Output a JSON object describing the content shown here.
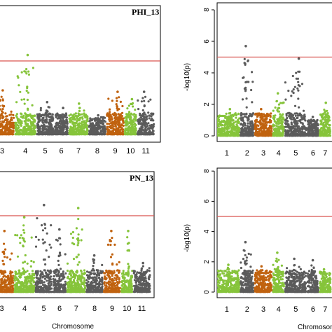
{
  "colors": {
    "dark": "#5b5b5b",
    "orange": "#c0620f",
    "green": "#86c43b",
    "threshold": "#d9534f",
    "frame": "#000000"
  },
  "chart_data": [
    {
      "type": "scatter",
      "title": "PHI_13",
      "xlabel": "",
      "ylabel": "",
      "ylim": [
        0,
        8.4
      ],
      "threshold": 5,
      "show_yaxis": false,
      "chromosomes": [
        "3",
        "4",
        "5",
        "6",
        "7",
        "8",
        "9",
        "10",
        "11"
      ],
      "peaks": [
        {
          "chromosome": "3",
          "value": 3.0
        },
        {
          "chromosome": "4",
          "value": 5.4
        },
        {
          "chromosome": "5",
          "value": 2.2
        },
        {
          "chromosome": "6",
          "value": 1.8
        },
        {
          "chromosome": "7",
          "value": 2.1
        },
        {
          "chromosome": "8",
          "value": 1.3
        },
        {
          "chromosome": "9",
          "value": 2.9
        },
        {
          "chromosome": "10",
          "value": 2.4
        },
        {
          "chromosome": "11",
          "value": 2.9
        }
      ]
    },
    {
      "type": "scatter",
      "title": "",
      "xlabel": "",
      "ylabel": "-log10(p)",
      "ylim": [
        0,
        8.4
      ],
      "yticks": [
        "0",
        "2",
        "4",
        "6",
        "8"
      ],
      "threshold": 5,
      "show_yaxis": true,
      "chromosomes": [
        "1",
        "2",
        "3",
        "4",
        "5",
        "6",
        "7"
      ],
      "peaks": [
        {
          "chromosome": "1",
          "value": 1.7
        },
        {
          "chromosome": "2",
          "value": 5.7
        },
        {
          "chromosome": "3",
          "value": 1.7
        },
        {
          "chromosome": "4",
          "value": 2.7
        },
        {
          "chromosome": "5",
          "value": 4.9
        },
        {
          "chromosome": "6",
          "value": 1.2
        },
        {
          "chromosome": "7",
          "value": 2.1
        }
      ]
    },
    {
      "type": "scatter",
      "title": "PN_13",
      "xlabel": "Chromosome",
      "ylabel": "",
      "ylim": [
        0,
        8.4
      ],
      "threshold": 5,
      "show_yaxis": false,
      "chromosomes": [
        "3",
        "4",
        "5",
        "6",
        "7",
        "8",
        "9",
        "10",
        "11"
      ],
      "peaks": [
        {
          "chromosome": "3",
          "value": 4.0
        },
        {
          "chromosome": "4",
          "value": 4.9
        },
        {
          "chromosome": "5",
          "value": 5.7
        },
        {
          "chromosome": "6",
          "value": 4.1
        },
        {
          "chromosome": "7",
          "value": 5.5
        },
        {
          "chromosome": "8",
          "value": 2.4
        },
        {
          "chromosome": "9",
          "value": 4.0
        },
        {
          "chromosome": "10",
          "value": 4.0
        },
        {
          "chromosome": "11",
          "value": 1.9
        }
      ]
    },
    {
      "type": "scatter",
      "title": "",
      "xlabel": "Chromosome",
      "ylabel": "-log10(p)",
      "ylim": [
        0,
        8.4
      ],
      "yticks": [
        "0",
        "2",
        "4",
        "6",
        "8"
      ],
      "threshold": 5,
      "show_yaxis": true,
      "chromosomes": [
        "1",
        "2",
        "3",
        "4",
        "5",
        "6",
        "7"
      ],
      "peaks": [
        {
          "chromosome": "1",
          "value": 1.8
        },
        {
          "chromosome": "2",
          "value": 3.3
        },
        {
          "chromosome": "3",
          "value": 1.7
        },
        {
          "chromosome": "4",
          "value": 2.6
        },
        {
          "chromosome": "5",
          "value": 2.2
        },
        {
          "chromosome": "6",
          "value": 2.1
        },
        {
          "chromosome": "7",
          "value": 1.5
        }
      ]
    }
  ]
}
